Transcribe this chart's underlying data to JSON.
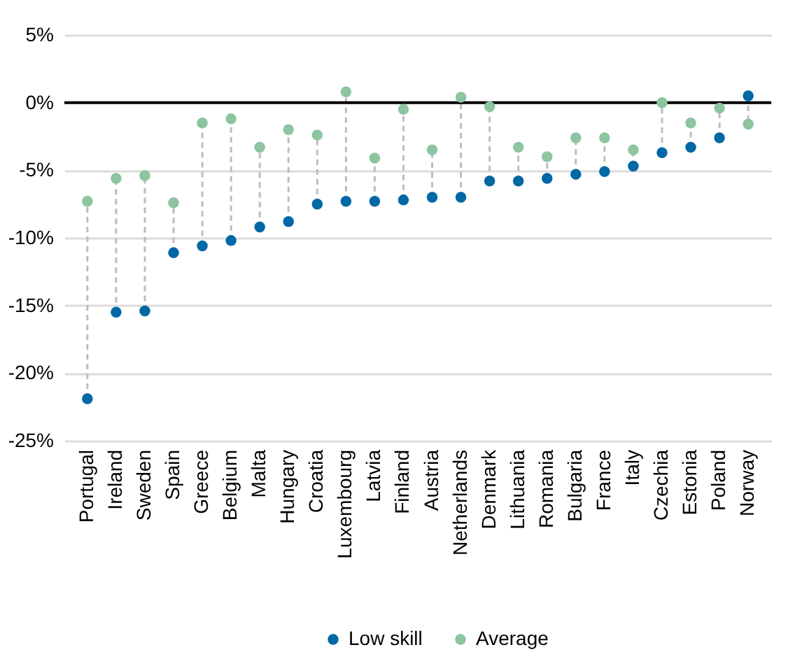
{
  "chart_data": {
    "type": "scatter",
    "categories": [
      "Portugal",
      "Ireland",
      "Sweden",
      "Spain",
      "Greece",
      "Belgium",
      "Malta",
      "Hungary",
      "Croatia",
      "Luxembourg",
      "Latvia",
      "Finland",
      "Austria",
      "Netherlands",
      "Denmark",
      "Lithuania",
      "Romania",
      "Bulgaria",
      "France",
      "Italy",
      "Czechia",
      "Estonia",
      "Poland",
      "Norway"
    ],
    "series": [
      {
        "name": "Low skill",
        "color": "#0068a5",
        "values": [
          -21.9,
          -15.5,
          -15.4,
          -11.1,
          -10.6,
          -10.2,
          -9.2,
          -8.8,
          -7.5,
          -7.3,
          -7.3,
          -7.2,
          -7.0,
          -7.0,
          -5.8,
          -5.8,
          -5.6,
          -5.3,
          -5.1,
          -4.7,
          -3.7,
          -3.3,
          -2.6,
          0.5
        ]
      },
      {
        "name": "Average",
        "color": "#8cc5a0",
        "values": [
          -7.3,
          -5.6,
          -5.4,
          -7.4,
          -1.5,
          -1.2,
          -3.3,
          -2.0,
          -2.4,
          0.8,
          -4.1,
          -0.5,
          -3.5,
          0.4,
          -0.3,
          -3.3,
          -4.0,
          -2.6,
          -2.6,
          -3.5,
          0.0,
          -1.5,
          -0.4,
          -1.6
        ]
      }
    ],
    "ylim": [
      -25,
      5
    ],
    "yticks": [
      {
        "value": 5,
        "label": "5%"
      },
      {
        "value": 0,
        "label": "0%"
      },
      {
        "value": -5,
        "label": "-5%"
      },
      {
        "value": -10,
        "label": "-10%"
      },
      {
        "value": -15,
        "label": "-15%"
      },
      {
        "value": -20,
        "label": "-20%"
      },
      {
        "value": -25,
        "label": "-25%"
      }
    ],
    "grid": "y",
    "legend": "bottom",
    "marker": "circle",
    "ref_lines": [
      {
        "axis": "y",
        "value": 0,
        "color": "#000000"
      }
    ]
  }
}
